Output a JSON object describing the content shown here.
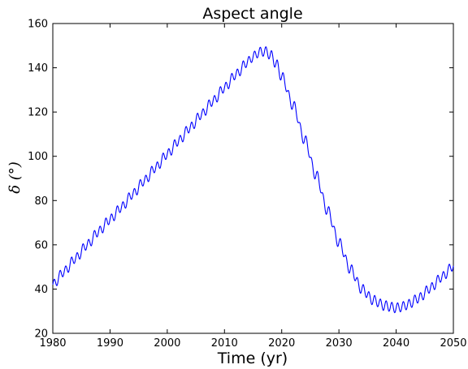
{
  "chart_data": {
    "type": "line",
    "title": "Aspect angle",
    "xlabel": "Time (yr)",
    "ylabel": "δ (°)",
    "xlim": [
      1980,
      2050
    ],
    "ylim": [
      20,
      160
    ],
    "x_ticks": [
      1980,
      1990,
      2000,
      2010,
      2020,
      2030,
      2040,
      2050
    ],
    "y_ticks": [
      20,
      40,
      60,
      80,
      100,
      120,
      140,
      160
    ],
    "grid": false,
    "line_color": "#0000ff",
    "series": [
      {
        "x": [
          1980,
          1982,
          1984,
          1986,
          1988,
          1990,
          1992,
          1994,
          1996,
          1998,
          2000,
          2002,
          2004,
          2006,
          2008,
          2010,
          2012,
          2014,
          2015,
          2016,
          2017,
          2018,
          2019,
          2020,
          2022,
          2024,
          2026,
          2028,
          2030,
          2032,
          2034,
          2036,
          2038,
          2040,
          2041,
          2042,
          2044,
          2046,
          2048,
          2050
        ],
        "y": [
          42,
          48,
          54,
          60,
          66,
          71.5,
          77,
          83,
          89,
          95,
          101,
          107,
          113,
          119,
          125,
          131,
          137,
          142.5,
          145,
          147,
          147.5,
          146,
          142,
          136,
          123,
          107.5,
          91.5,
          75.5,
          61,
          49,
          40,
          35,
          32.5,
          31.5,
          32,
          33,
          36,
          40.5,
          45.5,
          50.5
        ],
        "wobble_amplitude": 2.2,
        "wobble_period": 1
      }
    ]
  }
}
